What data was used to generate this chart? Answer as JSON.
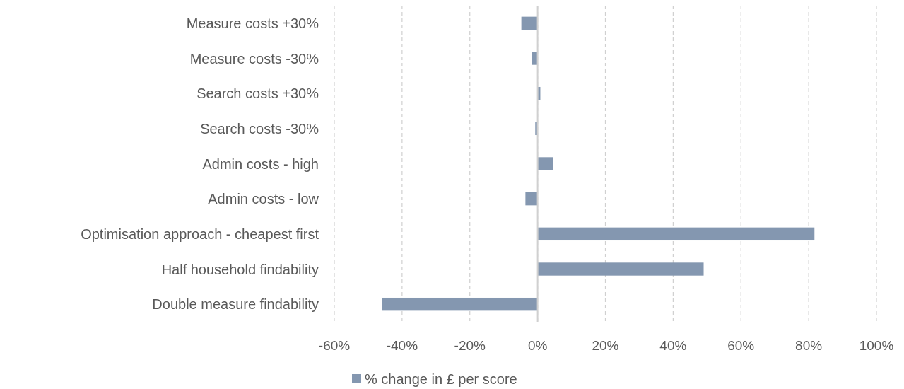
{
  "chart_data": {
    "type": "bar",
    "orientation": "horizontal",
    "categories": [
      "Measure costs +30%",
      "Measure costs -30%",
      "Search costs +30%",
      "Search costs -30%",
      "Admin costs - high",
      "Admin costs - low",
      "Optimisation approach - cheapest first",
      "Half household findability",
      "Double measure findability"
    ],
    "series": [
      {
        "name": "% change in £ per score",
        "color": "#8497b0",
        "values": [
          -4.8,
          -1.7,
          0.8,
          -0.7,
          4.5,
          -3.6,
          81.7,
          49,
          -46
        ]
      }
    ],
    "xlim": [
      -60,
      100
    ],
    "xticks": [
      {
        "value": -60,
        "label": "-60%"
      },
      {
        "value": -40,
        "label": "-40%"
      },
      {
        "value": -20,
        "label": "-20%"
      },
      {
        "value": 0,
        "label": "0%"
      },
      {
        "value": 20,
        "label": "20%"
      },
      {
        "value": 40,
        "label": "40%"
      },
      {
        "value": 60,
        "label": "60%"
      },
      {
        "value": 80,
        "label": "80%"
      },
      {
        "value": 100,
        "label": "100%"
      }
    ],
    "grid": "x",
    "legend": "bottom"
  }
}
